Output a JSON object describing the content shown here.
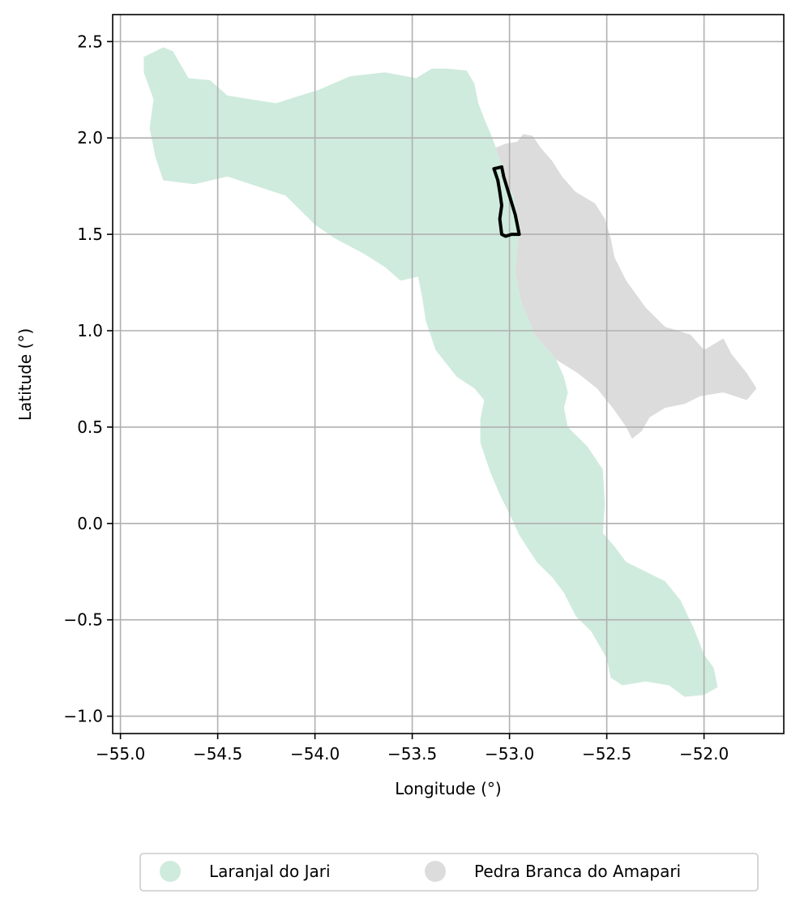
{
  "chart_data": {
    "type": "map",
    "xlabel": "Longitude (°)",
    "ylabel": "Latitude (°)",
    "xlim": [
      -55.04,
      -51.59
    ],
    "ylim": [
      -1.09,
      2.64
    ],
    "grid": true,
    "legend_placement": "bottom-center",
    "x_ticks": [
      {
        "value": -55.0,
        "label": "−55.0"
      },
      {
        "value": -54.5,
        "label": "−54.5"
      },
      {
        "value": -54.0,
        "label": "−54.0"
      },
      {
        "value": -53.5,
        "label": "−53.5"
      },
      {
        "value": -53.0,
        "label": "−53.0"
      },
      {
        "value": -52.5,
        "label": "−52.5"
      },
      {
        "value": -52.0,
        "label": "−52.0"
      }
    ],
    "y_ticks": [
      {
        "value": 2.5,
        "label": "2.5"
      },
      {
        "value": 2.0,
        "label": "2.0"
      },
      {
        "value": 1.5,
        "label": "1.5"
      },
      {
        "value": 1.0,
        "label": "1.0"
      },
      {
        "value": 0.5,
        "label": "0.5"
      },
      {
        "value": 0.0,
        "label": "0.0"
      },
      {
        "value": -0.5,
        "label": "−0.5"
      },
      {
        "value": -1.0,
        "label": "−1.0"
      }
    ],
    "regions": [
      {
        "name": "Laranjal do Jari",
        "color": "#cfebdd",
        "coords": [
          [
            -54.88,
            2.42
          ],
          [
            -54.78,
            2.47
          ],
          [
            -54.73,
            2.45
          ],
          [
            -54.65,
            2.31
          ],
          [
            -54.54,
            2.3
          ],
          [
            -54.45,
            2.22
          ],
          [
            -54.2,
            2.18
          ],
          [
            -53.98,
            2.25
          ],
          [
            -53.82,
            2.32
          ],
          [
            -53.64,
            2.34
          ],
          [
            -53.48,
            2.31
          ],
          [
            -53.4,
            2.36
          ],
          [
            -53.32,
            2.36
          ],
          [
            -53.22,
            2.35
          ],
          [
            -53.18,
            2.28
          ],
          [
            -53.16,
            2.18
          ],
          [
            -53.13,
            2.1
          ],
          [
            -53.1,
            2.03
          ],
          [
            -53.07,
            1.95
          ],
          [
            -53.05,
            1.88
          ],
          [
            -53.03,
            1.8
          ],
          [
            -52.98,
            1.7
          ],
          [
            -52.95,
            1.56
          ],
          [
            -52.96,
            1.42
          ],
          [
            -52.97,
            1.3
          ],
          [
            -52.94,
            1.15
          ],
          [
            -52.87,
            0.98
          ],
          [
            -52.76,
            0.85
          ],
          [
            -52.72,
            0.76
          ],
          [
            -52.7,
            0.68
          ],
          [
            -52.72,
            0.6
          ],
          [
            -52.7,
            0.5
          ],
          [
            -52.6,
            0.4
          ],
          [
            -52.52,
            0.28
          ],
          [
            -52.51,
            0.1
          ],
          [
            -52.52,
            -0.05
          ],
          [
            -52.46,
            -0.12
          ],
          [
            -52.4,
            -0.2
          ],
          [
            -52.3,
            -0.25
          ],
          [
            -52.2,
            -0.3
          ],
          [
            -52.12,
            -0.4
          ],
          [
            -52.05,
            -0.55
          ],
          [
            -52.0,
            -0.68
          ],
          [
            -51.95,
            -0.75
          ],
          [
            -51.93,
            -0.85
          ],
          [
            -52.0,
            -0.89
          ],
          [
            -52.1,
            -0.9
          ],
          [
            -52.18,
            -0.84
          ],
          [
            -52.3,
            -0.82
          ],
          [
            -52.42,
            -0.84
          ],
          [
            -52.48,
            -0.8
          ],
          [
            -52.5,
            -0.7
          ],
          [
            -52.58,
            -0.56
          ],
          [
            -52.66,
            -0.48
          ],
          [
            -52.72,
            -0.36
          ],
          [
            -52.78,
            -0.28
          ],
          [
            -52.86,
            -0.2
          ],
          [
            -52.95,
            -0.06
          ],
          [
            -53.0,
            0.05
          ],
          [
            -53.05,
            0.15
          ],
          [
            -53.1,
            0.27
          ],
          [
            -53.15,
            0.42
          ],
          [
            -53.15,
            0.54
          ],
          [
            -53.13,
            0.64
          ],
          [
            -53.18,
            0.7
          ],
          [
            -53.27,
            0.76
          ],
          [
            -53.38,
            0.9
          ],
          [
            -53.43,
            1.05
          ],
          [
            -53.45,
            1.18
          ],
          [
            -53.47,
            1.28
          ],
          [
            -53.56,
            1.26
          ],
          [
            -53.64,
            1.33
          ],
          [
            -53.75,
            1.4
          ],
          [
            -53.9,
            1.48
          ],
          [
            -54.0,
            1.55
          ],
          [
            -54.08,
            1.63
          ],
          [
            -54.15,
            1.7
          ],
          [
            -54.3,
            1.75
          ],
          [
            -54.45,
            1.8
          ],
          [
            -54.62,
            1.76
          ],
          [
            -54.78,
            1.78
          ],
          [
            -54.82,
            1.9
          ],
          [
            -54.85,
            2.05
          ],
          [
            -54.83,
            2.2
          ],
          [
            -54.88,
            2.34
          ]
        ]
      },
      {
        "name": "Pedra Branca do Amapari",
        "color": "#dcdcdc",
        "coords": [
          [
            -53.07,
            1.95
          ],
          [
            -53.02,
            1.97
          ],
          [
            -52.96,
            1.98
          ],
          [
            -52.93,
            2.02
          ],
          [
            -52.88,
            2.01
          ],
          [
            -52.84,
            1.95
          ],
          [
            -52.78,
            1.88
          ],
          [
            -52.73,
            1.8
          ],
          [
            -52.66,
            1.72
          ],
          [
            -52.56,
            1.66
          ],
          [
            -52.51,
            1.58
          ],
          [
            -52.48,
            1.48
          ],
          [
            -52.46,
            1.38
          ],
          [
            -52.4,
            1.26
          ],
          [
            -52.3,
            1.12
          ],
          [
            -52.2,
            1.02
          ],
          [
            -52.07,
            0.98
          ],
          [
            -52.0,
            0.9
          ],
          [
            -51.9,
            0.96
          ],
          [
            -51.86,
            0.88
          ],
          [
            -51.78,
            0.78
          ],
          [
            -51.73,
            0.7
          ],
          [
            -51.78,
            0.64
          ],
          [
            -51.9,
            0.68
          ],
          [
            -52.02,
            0.66
          ],
          [
            -52.1,
            0.62
          ],
          [
            -52.2,
            0.6
          ],
          [
            -52.28,
            0.55
          ],
          [
            -52.32,
            0.48
          ],
          [
            -52.37,
            0.44
          ],
          [
            -52.4,
            0.5
          ],
          [
            -52.47,
            0.6
          ],
          [
            -52.55,
            0.7
          ],
          [
            -52.65,
            0.78
          ],
          [
            -52.76,
            0.85
          ],
          [
            -52.87,
            0.98
          ],
          [
            -52.94,
            1.15
          ],
          [
            -52.97,
            1.3
          ],
          [
            -52.96,
            1.42
          ],
          [
            -52.95,
            1.56
          ],
          [
            -52.98,
            1.7
          ],
          [
            -53.03,
            1.8
          ],
          [
            -53.05,
            1.88
          ]
        ]
      }
    ],
    "track": {
      "color": "#000000",
      "coords": [
        [
          -53.08,
          1.84
        ],
        [
          -53.04,
          1.85
        ],
        [
          -53.03,
          1.8
        ],
        [
          -53.0,
          1.7
        ],
        [
          -52.97,
          1.6
        ],
        [
          -52.95,
          1.5
        ],
        [
          -52.99,
          1.5
        ],
        [
          -53.02,
          1.49
        ],
        [
          -53.04,
          1.5
        ],
        [
          -53.05,
          1.58
        ],
        [
          -53.04,
          1.65
        ],
        [
          -53.05,
          1.72
        ],
        [
          -53.06,
          1.78
        ],
        [
          -53.08,
          1.84
        ]
      ]
    },
    "legend": [
      {
        "label": "Laranjal do Jari",
        "color": "#cfebdd"
      },
      {
        "label": "Pedra Branca do Amapari",
        "color": "#dcdcdc"
      }
    ]
  }
}
